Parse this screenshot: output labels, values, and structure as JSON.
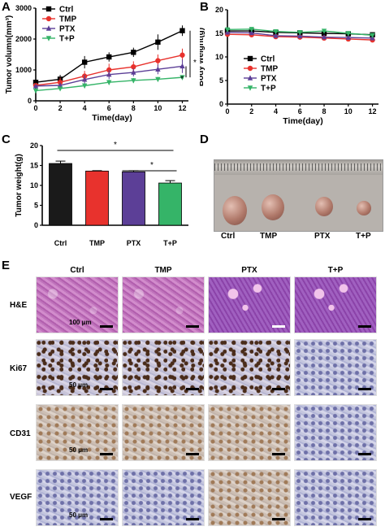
{
  "panels": {
    "a": "A",
    "b": "B",
    "c": "C",
    "d": "D",
    "e": "E"
  },
  "chart_data": [
    {
      "type": "line",
      "xlabel": "Time(day)",
      "ylabel": "Tumor volumn(mm³)",
      "x": [
        0,
        2,
        4,
        6,
        8,
        10,
        12
      ],
      "xticks": [
        "0",
        "2",
        "4",
        "6",
        "8",
        "10",
        "12"
      ],
      "yticks": [
        "0",
        "1000",
        "2000",
        "3000"
      ],
      "xlim": [
        0,
        12.5
      ],
      "ylim": [
        0,
        3000
      ],
      "legend": "top-left",
      "series": [
        {
          "name": "Ctrl",
          "color": "#000000",
          "marker": "square",
          "values": [
            600,
            700,
            1250,
            1420,
            1570,
            1900,
            2270
          ]
        },
        {
          "name": "TMP",
          "color": "#e8322d",
          "marker": "circle",
          "values": [
            500,
            600,
            800,
            1000,
            1100,
            1300,
            1480
          ]
        },
        {
          "name": "PTX",
          "color": "#5c3f97",
          "marker": "triangle",
          "values": [
            480,
            500,
            690,
            850,
            920,
            1020,
            1120
          ]
        },
        {
          "name": "T+P",
          "color": "#35b468",
          "marker": "triangle-down",
          "values": [
            330,
            400,
            490,
            600,
            660,
            700,
            760
          ]
        }
      ],
      "annotations": [
        "*",
        "*"
      ]
    },
    {
      "type": "line",
      "xlabel": "Time(day)",
      "ylabel": "Body weight(g)",
      "x": [
        0,
        2,
        4,
        6,
        8,
        10,
        12
      ],
      "xticks": [
        "0",
        "2",
        "4",
        "6",
        "8",
        "10",
        "12"
      ],
      "yticks": [
        "0",
        "5",
        "10",
        "15",
        "20"
      ],
      "xlim": [
        0,
        12.5
      ],
      "ylim": [
        0,
        20
      ],
      "legend": "center",
      "series": [
        {
          "name": "Ctrl",
          "color": "#000000",
          "marker": "square",
          "values": [
            15.5,
            15.5,
            15.2,
            15.1,
            15.0,
            14.9,
            14.7
          ]
        },
        {
          "name": "TMP",
          "color": "#e8322d",
          "marker": "circle",
          "values": [
            14.8,
            14.7,
            14.3,
            14.2,
            14.0,
            13.8,
            13.6
          ]
        },
        {
          "name": "PTX",
          "color": "#5c3f97",
          "marker": "triangle",
          "values": [
            15.2,
            15.1,
            14.5,
            14.4,
            14.2,
            14.1,
            14.0
          ]
        },
        {
          "name": "T+P",
          "color": "#35b468",
          "marker": "triangle-down",
          "values": [
            15.8,
            15.9,
            15.4,
            15.2,
            15.5,
            15.0,
            14.6
          ]
        }
      ]
    },
    {
      "type": "bar",
      "ylabel": "Tumor weight(g)",
      "categories": [
        "Ctrl",
        "TMP",
        "PTX",
        "T+P"
      ],
      "values": [
        15.5,
        13.6,
        13.4,
        10.6
      ],
      "errors": [
        0.6,
        0.1,
        0.3,
        0.6
      ],
      "colors": [
        "#1a1a1a",
        "#e8322d",
        "#5c3f97",
        "#35b468"
      ],
      "yticks": [
        "0",
        "5",
        "10",
        "15",
        "20"
      ],
      "ylim": [
        0,
        20
      ],
      "annotations": [
        "*",
        "*"
      ]
    }
  ],
  "panel_d": {
    "labels": [
      "Ctrl",
      "TMP",
      "PTX",
      "T+P"
    ]
  },
  "panel_e": {
    "columns": [
      "Ctrl",
      "TMP",
      "PTX",
      "T+P"
    ],
    "rows": [
      "H&E",
      "Ki67",
      "CD31",
      "VEGF"
    ],
    "scales": [
      "100 μm",
      "50 μm",
      "50 μm",
      "50 μm"
    ]
  }
}
